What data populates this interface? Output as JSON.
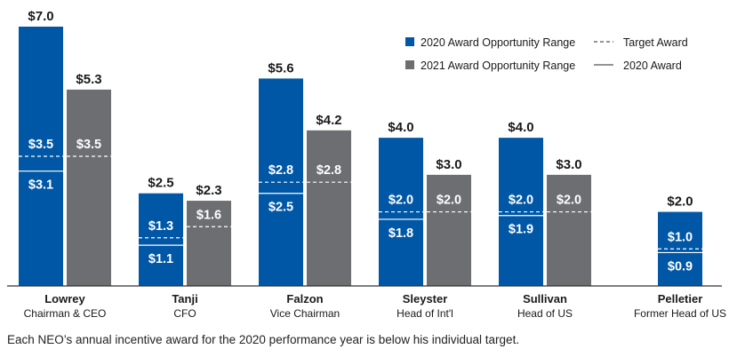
{
  "chart_data": {
    "type": "bar",
    "title": "",
    "xlabel": "",
    "ylabel": "",
    "ylim": [
      0,
      7.0
    ],
    "currency_prefix": "$",
    "categories": [
      {
        "name": "Lowrey",
        "role": "Chairman & CEO"
      },
      {
        "name": "Tanji",
        "role": "CFO"
      },
      {
        "name": "Falzon",
        "role": "Vice Chairman"
      },
      {
        "name": "Sleyster",
        "role": "Head of Int'l"
      },
      {
        "name": "Sullivan",
        "role": "Head of US"
      },
      {
        "name": "Pelletier",
        "role": "Former Head of US"
      }
    ],
    "series": [
      {
        "name": "2020 Award Opportunity Range",
        "color": "#0057a6",
        "values": [
          7.0,
          2.5,
          5.6,
          4.0,
          4.0,
          2.0
        ],
        "target_award": [
          3.5,
          1.3,
          2.8,
          2.0,
          2.0,
          1.0
        ],
        "award_2020": [
          3.1,
          1.1,
          2.5,
          1.8,
          1.9,
          0.9
        ]
      },
      {
        "name": "2021 Award Opportunity Range",
        "color": "#6d6e71",
        "values": [
          5.3,
          2.3,
          4.2,
          3.0,
          3.0,
          null
        ],
        "target_award": [
          3.5,
          1.6,
          2.8,
          2.0,
          2.0,
          null
        ]
      }
    ],
    "legend": {
      "position": "top-right",
      "entries": [
        {
          "label": "2020 Award Opportunity Range",
          "kind": "swatch",
          "color": "#0057a6"
        },
        {
          "label": "2021 Award Opportunity Range",
          "kind": "swatch",
          "color": "#6d6e71"
        },
        {
          "label": "Target Award",
          "kind": "dashed-line"
        },
        {
          "label": "2020 Award",
          "kind": "solid-line"
        }
      ]
    }
  },
  "footnote": "Each NEO’s annual incentive award for the 2020 performance year is below his individual target."
}
